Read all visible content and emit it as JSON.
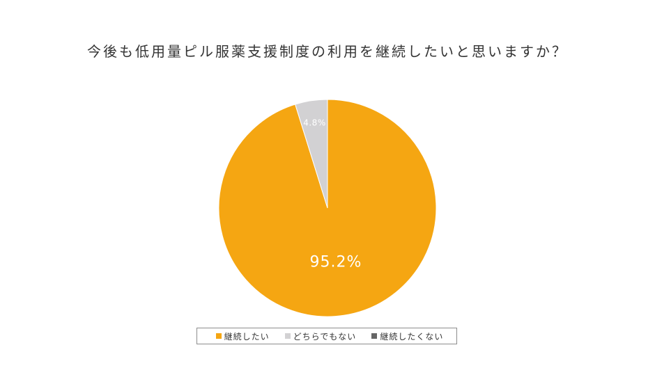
{
  "chart_data": {
    "type": "pie",
    "title": "今後も低用量ピル服薬支援制度の利用を継続したいと思いますか？",
    "slices": [
      {
        "label": "継続したい",
        "value": 95.2,
        "value_label": "95.2%",
        "color": "#F5A612"
      },
      {
        "label": "どちらでもない",
        "value": 4.8,
        "value_label": "4.8%",
        "color": "#D2D1D3"
      },
      {
        "label": "継続したくない",
        "value": 0,
        "color": "#666666"
      }
    ],
    "start": "top",
    "direction": "clockwise",
    "legend": "bottom"
  }
}
